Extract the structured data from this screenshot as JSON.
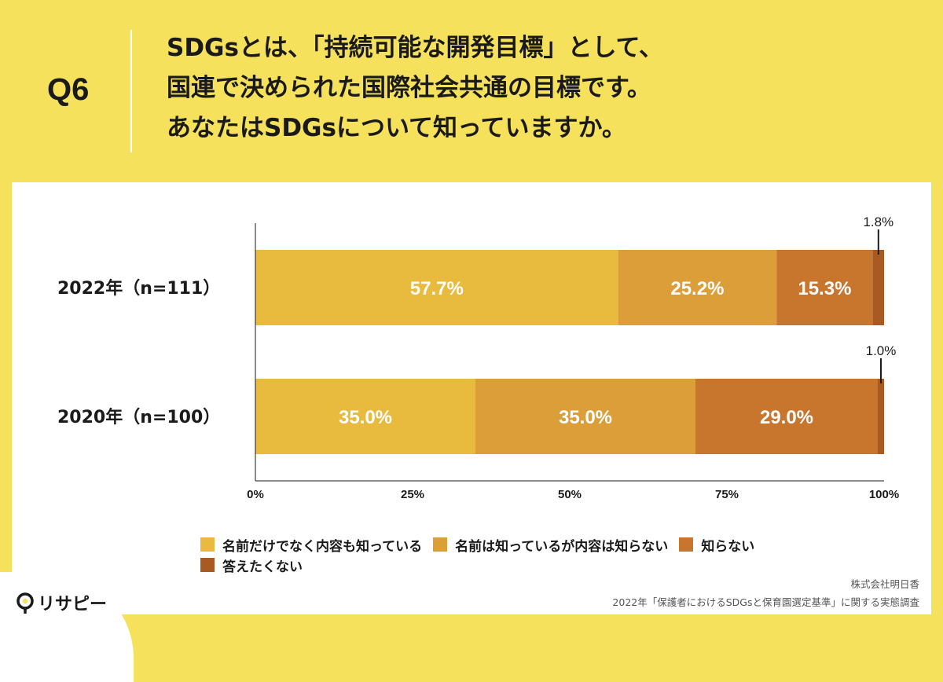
{
  "question": {
    "number": "Q6",
    "lines": [
      "SDGsとは、「持続可能な開発目標」として、",
      "国連で決められた国際社会共通の目標です。",
      "あなたはSDGsについて知っていますか。"
    ]
  },
  "chart_data": {
    "type": "bar",
    "orientation": "horizontal",
    "stacked": true,
    "categories": [
      "2022年（n=111）",
      "2020年（n=100）"
    ],
    "series": [
      {
        "name": "名前だけでなく内容も知っている",
        "values": [
          57.7,
          35.0
        ],
        "color": "#E8BB3F"
      },
      {
        "name": "名前は知っているが内容は知らない",
        "values": [
          25.2,
          35.0
        ],
        "color": "#DC9E38"
      },
      {
        "name": "知らない",
        "values": [
          15.3,
          29.0
        ],
        "color": "#C8752E"
      },
      {
        "name": "答えたくない",
        "values": [
          1.8,
          1.0
        ],
        "color": "#A85A22"
      }
    ],
    "data_labels": [
      [
        "57.7%",
        "25.2%",
        "15.3%",
        "1.8%"
      ],
      [
        "35.0%",
        "35.0%",
        "29.0%",
        "1.0%"
      ]
    ],
    "xlim": [
      0,
      100
    ],
    "x_ticks": [
      "0%",
      "25%",
      "50%",
      "75%",
      "100%"
    ],
    "grid": false,
    "legend_position": "bottom"
  },
  "legend": {
    "items": [
      {
        "label": "名前だけでなく内容も知っている",
        "color": "#E8BB3F"
      },
      {
        "label": "名前は知っているが内容は知らない",
        "color": "#DC9E38"
      },
      {
        "label": "知らない",
        "color": "#C8752E"
      },
      {
        "label": "答えたくない",
        "color": "#A85A22"
      }
    ]
  },
  "source": {
    "company": "株式会社明日香",
    "survey": "2022年「保護者におけるSDGsと保育園選定基準」に関する実態調査"
  },
  "brand": {
    "name": "リサピー"
  },
  "colors": {
    "background": "#F5E15C",
    "panel": "#FFFFFF"
  }
}
